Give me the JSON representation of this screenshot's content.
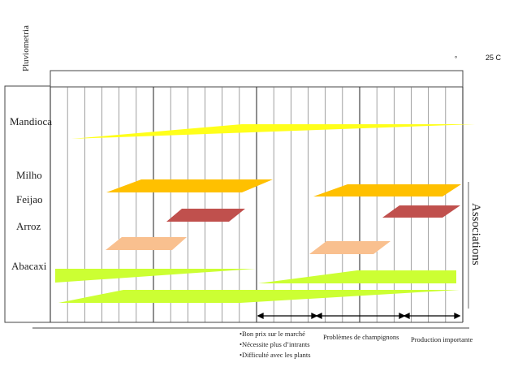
{
  "header": {
    "rotated_label": "Pluviometria",
    "temperature": "25 C",
    "temperature_mark": "°"
  },
  "crops": [
    "Mandioca",
    "Milho",
    "Feijao",
    "Arroz",
    "Abacaxi"
  ],
  "side_label": "Associations",
  "notes": {
    "col1": [
      "•Bon prix sur le marché",
      "•Nécessite plus d’intrants",
      "•Difficulté avec les plants"
    ],
    "col2": "Problèmes de champignons",
    "col3": "Production importante"
  },
  "colors": {
    "mandioca": "#ffff1a",
    "milho": "#ffc000",
    "arroz": "#c0504d",
    "feijao_assoc": "#f9c08f",
    "abacaxi": "#ccff33",
    "grid": "#444444"
  }
}
